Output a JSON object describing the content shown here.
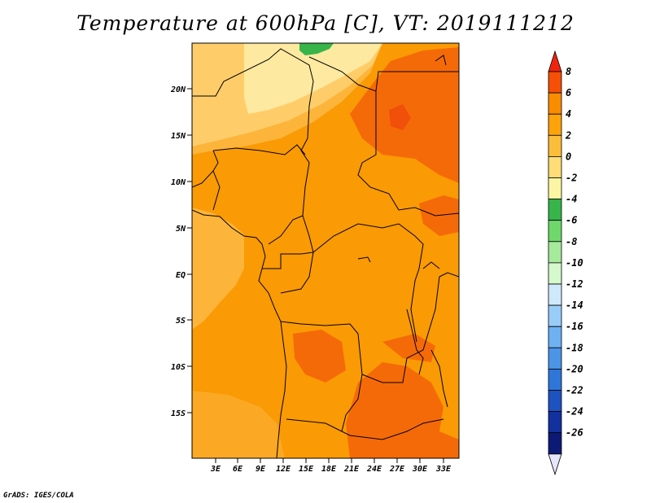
{
  "title": "Temperature at 600hPa [C], VT: 2019111212",
  "credit": "GrADS: IGES/COLA",
  "axes": {
    "lat_labels": [
      "20N",
      "15N",
      "10N",
      "5N",
      "EQ",
      "5S",
      "10S",
      "15S"
    ],
    "lon_labels": [
      "3E",
      "6E",
      "9E",
      "12E",
      "15E",
      "18E",
      "21E",
      "24E",
      "27E",
      "30E",
      "33E"
    ]
  },
  "colorbar": {
    "labels": [
      "8",
      "6",
      "4",
      "2",
      "0",
      "-2",
      "-4",
      "-6",
      "-8",
      "-10",
      "-12",
      "-14",
      "-16",
      "-18",
      "-20",
      "-22",
      "-24",
      "-26"
    ],
    "colors": [
      "#f0240e",
      "#f55006",
      "#fa8c00",
      "#ffa30a",
      "#fcbe3a",
      "#fedc76",
      "#fcf6a4",
      "#37b44a",
      "#6fd86b",
      "#a6ea9b",
      "#d5f8cd",
      "#cfe9fb",
      "#98cdf8",
      "#6db1f2",
      "#4c94e6",
      "#2f76d9",
      "#1d52c1",
      "#13309f",
      "#0c1a76"
    ],
    "under_color": "#e6e6fa"
  },
  "colors": {
    "warm_4_to_6": "#f56a08",
    "warm_2_to_4": "#fa9a04",
    "warm_0_to_2": "#fcb43a",
    "mild_m2_to_0": "#fecd6a",
    "mild_m4_to_m2": "#fde9a0",
    "cool_green": "#37b44a"
  }
}
